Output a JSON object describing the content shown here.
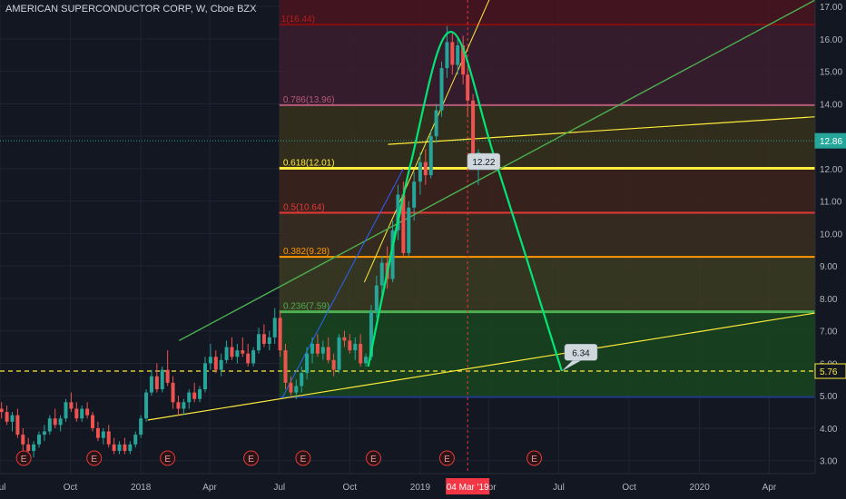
{
  "header": {
    "title": "AMERICAN SUPERCONDUCTOR CORP, W, Cboe BZX"
  },
  "colors": {
    "background": "#131722",
    "grid": "#1f2433",
    "axis_text": "#b2b5be",
    "up": "#26a69a",
    "down": "#ef5350",
    "current_price": "#26a69a",
    "dashed_level": "#ffeb3b",
    "date_flag": "#f23645"
  },
  "chart_data": {
    "type": "candlestick",
    "y_axis": {
      "range": [
        2.6,
        17.2
      ],
      "ticks": [
        "3.00",
        "4.00",
        "5.00",
        "6.00",
        "7.00",
        "8.00",
        "9.00",
        "10.00",
        "11.00",
        "12.00",
        "13.00",
        "14.00",
        "15.00",
        "16.00",
        "17.00"
      ]
    },
    "x_axis": {
      "range": [
        "2017-07-01",
        "2020-05-31"
      ],
      "ticks": [
        {
          "date": "2017-07-01",
          "label": "Jul"
        },
        {
          "date": "2017-10-01",
          "label": "Oct"
        },
        {
          "date": "2018-01-01",
          "label": "2018"
        },
        {
          "date": "2018-04-01",
          "label": "Apr"
        },
        {
          "date": "2018-07-01",
          "label": "Jul"
        },
        {
          "date": "2018-10-01",
          "label": "Oct"
        },
        {
          "date": "2019-01-01",
          "label": "2019"
        },
        {
          "date": "2019-04-01",
          "label": "Apr"
        },
        {
          "date": "2019-07-01",
          "label": "Jul"
        },
        {
          "date": "2019-10-01",
          "label": "Oct"
        },
        {
          "date": "2020-01-01",
          "label": "2020"
        },
        {
          "date": "2020-04-01",
          "label": "Apr"
        }
      ]
    },
    "date_flag": {
      "date": "2019-03-04",
      "label": "04 Mar '19"
    },
    "price_labels": [
      {
        "value": 12.86,
        "label": "12.86",
        "color": "#26a69a"
      },
      {
        "value": 5.76,
        "label": "5.76",
        "color": "#ffeb3b"
      }
    ],
    "fib": {
      "start": "2018-07-01",
      "end": "2020-05-31",
      "levels": [
        {
          "value": 16.44,
          "label": "1(16.44)",
          "color": "#880e0e",
          "band": "#5a1018"
        },
        {
          "value": 13.96,
          "label": "0.786(13.96)",
          "color": "#b45a78",
          "band": "#3a1d2e"
        },
        {
          "value": 12.01,
          "label": "0.618(12.01)",
          "color": "#ffeb3b",
          "band": "#35301c"
        },
        {
          "value": 10.64,
          "label": "0.5(10.64)",
          "color": "#e53935",
          "band": "#3b221d"
        },
        {
          "value": 9.28,
          "label": "0.382(9.28)",
          "color": "#ff9800",
          "band": "#3a2c1f"
        },
        {
          "value": 7.59,
          "label": "0.236(7.59)",
          "color": "#4caf50",
          "band": "#3a3a22"
        },
        {
          "value": 4.96,
          "label": "",
          "color": "#1e3a8a",
          "band": "#18441f"
        }
      ]
    },
    "earnings_markers": {
      "label": "E",
      "dates": [
        "2017-08-01",
        "2017-11-01",
        "2018-02-05",
        "2018-05-25",
        "2018-08-01",
        "2018-11-01",
        "2019-02-05",
        "2019-05-30"
      ]
    },
    "callouts": [
      {
        "text": "12.22",
        "date": "2019-03-25",
        "value": 12.22,
        "tip_date": "2019-03-10",
        "tip_value": 12.01
      },
      {
        "text": "6.34",
        "date": "2019-07-30",
        "value": 6.34,
        "tip_date": "2019-07-05",
        "tip_value": 5.76
      }
    ],
    "lines": [
      {
        "name": "lower-trend",
        "color": "#ffeb3b",
        "width": 1.2,
        "points": [
          [
            "2018-01-10",
            4.25
          ],
          [
            "2020-05-31",
            7.55
          ]
        ]
      },
      {
        "name": "upper-channel",
        "color": "#ffeb3b",
        "width": 1.2,
        "points": [
          [
            "2018-11-20",
            12.75
          ],
          [
            "2020-05-31",
            13.6
          ]
        ]
      },
      {
        "name": "steep-yellow",
        "color": "#ffeb3b",
        "width": 1,
        "points": [
          [
            "2018-10-20",
            8.5
          ],
          [
            "2019-04-01",
            17.2
          ]
        ]
      },
      {
        "name": "green-trend",
        "color": "#4caf50",
        "width": 1.4,
        "points": [
          [
            "2018-02-20",
            6.7
          ],
          [
            "2020-05-31",
            17.2
          ]
        ]
      },
      {
        "name": "blue-trend",
        "color": "#2962ff",
        "width": 1,
        "points": [
          [
            "2018-07-05",
            4.95
          ],
          [
            "2018-12-10",
            12.0
          ]
        ]
      },
      {
        "name": "green-rise",
        "color": "#00e676",
        "width": 1.2,
        "points": [
          [
            "2018-10-25",
            5.9
          ],
          [
            "2018-12-20",
            12.2
          ]
        ]
      }
    ],
    "arc": {
      "color": "#00e676",
      "points": [
        [
          "2018-10-25",
          5.9
        ],
        [
          "2018-12-20",
          12.2
        ],
        [
          "2019-02-10",
          16.22
        ],
        [
          "2019-04-10",
          12.2
        ],
        [
          "2019-07-05",
          5.76
        ]
      ]
    },
    "dashed_line": {
      "value": 5.76,
      "color": "#ffeb3b"
    },
    "dotted_line": {
      "value": 12.86,
      "color": "#26a69a"
    },
    "vertical_marker": {
      "date": "2019-03-04",
      "color": "#e53935"
    },
    "candles": [
      [
        "2017-07-03",
        4.6,
        4.8,
        4.3,
        4.5
      ],
      [
        "2017-07-10",
        4.5,
        4.7,
        4.1,
        4.2
      ],
      [
        "2017-07-17",
        4.2,
        4.5,
        3.9,
        4.4
      ],
      [
        "2017-07-24",
        4.4,
        4.6,
        3.7,
        3.8
      ],
      [
        "2017-07-31",
        3.8,
        4.0,
        3.3,
        3.5
      ],
      [
        "2017-08-07",
        3.5,
        3.7,
        3.1,
        3.3
      ],
      [
        "2017-08-14",
        3.3,
        3.6,
        3.1,
        3.5
      ],
      [
        "2017-08-21",
        3.5,
        3.9,
        3.4,
        3.8
      ],
      [
        "2017-08-28",
        3.8,
        4.1,
        3.6,
        3.9
      ],
      [
        "2017-09-04",
        3.9,
        4.4,
        3.8,
        4.3
      ],
      [
        "2017-09-11",
        4.3,
        4.6,
        4.0,
        4.1
      ],
      [
        "2017-09-18",
        4.1,
        4.4,
        3.9,
        4.3
      ],
      [
        "2017-09-25",
        4.3,
        4.9,
        4.2,
        4.8
      ],
      [
        "2017-10-02",
        4.8,
        5.1,
        4.5,
        4.6
      ],
      [
        "2017-10-09",
        4.6,
        4.8,
        4.2,
        4.3
      ],
      [
        "2017-10-16",
        4.3,
        4.7,
        4.2,
        4.6
      ],
      [
        "2017-10-23",
        4.6,
        4.8,
        4.3,
        4.4
      ],
      [
        "2017-10-30",
        4.4,
        4.5,
        3.9,
        4.0
      ],
      [
        "2017-11-06",
        4.0,
        4.2,
        3.6,
        3.7
      ],
      [
        "2017-11-13",
        3.7,
        4.0,
        3.5,
        3.9
      ],
      [
        "2017-11-20",
        3.9,
        4.1,
        3.4,
        3.5
      ],
      [
        "2017-11-27",
        3.5,
        3.7,
        3.2,
        3.3
      ],
      [
        "2017-12-04",
        3.3,
        3.6,
        3.2,
        3.5
      ],
      [
        "2017-12-11",
        3.5,
        3.7,
        3.2,
        3.3
      ],
      [
        "2017-12-18",
        3.3,
        3.6,
        3.2,
        3.5
      ],
      [
        "2017-12-25",
        3.5,
        3.9,
        3.4,
        3.8
      ],
      [
        "2018-01-01",
        3.8,
        4.4,
        3.7,
        4.3
      ],
      [
        "2018-01-08",
        4.3,
        5.2,
        4.2,
        5.1
      ],
      [
        "2018-01-15",
        5.1,
        5.8,
        5.0,
        5.6
      ],
      [
        "2018-01-22",
        5.6,
        6.0,
        5.1,
        5.2
      ],
      [
        "2018-01-29",
        5.2,
        5.9,
        5.1,
        5.8
      ],
      [
        "2018-02-05",
        5.8,
        6.4,
        5.3,
        5.4
      ],
      [
        "2018-02-12",
        5.4,
        5.6,
        4.6,
        4.8
      ],
      [
        "2018-02-19",
        4.8,
        5.0,
        4.4,
        4.6
      ],
      [
        "2018-02-26",
        4.6,
        4.9,
        4.4,
        4.8
      ],
      [
        "2018-03-05",
        4.8,
        5.2,
        4.6,
        5.1
      ],
      [
        "2018-03-12",
        5.1,
        5.4,
        4.8,
        4.9
      ],
      [
        "2018-03-19",
        4.9,
        5.3,
        4.8,
        5.2
      ],
      [
        "2018-03-26",
        5.2,
        6.2,
        5.1,
        6.0
      ],
      [
        "2018-04-02",
        6.0,
        6.6,
        5.8,
        6.2
      ],
      [
        "2018-04-09",
        6.2,
        6.4,
        5.7,
        5.8
      ],
      [
        "2018-04-16",
        5.8,
        6.3,
        5.6,
        6.1
      ],
      [
        "2018-04-23",
        6.1,
        6.7,
        6.0,
        6.5
      ],
      [
        "2018-04-30",
        6.5,
        6.8,
        6.1,
        6.2
      ],
      [
        "2018-05-07",
        6.2,
        6.6,
        6.0,
        6.4
      ],
      [
        "2018-05-14",
        6.4,
        6.8,
        6.2,
        6.3
      ],
      [
        "2018-05-21",
        6.3,
        6.6,
        5.9,
        6.0
      ],
      [
        "2018-05-28",
        6.0,
        6.5,
        5.9,
        6.4
      ],
      [
        "2018-06-04",
        6.4,
        7.1,
        6.3,
        6.9
      ],
      [
        "2018-06-11",
        6.9,
        7.2,
        6.5,
        6.6
      ],
      [
        "2018-06-18",
        6.6,
        7.0,
        6.4,
        6.8
      ],
      [
        "2018-06-25",
        6.8,
        7.7,
        6.6,
        7.4
      ],
      [
        "2018-07-02",
        7.4,
        7.6,
        6.2,
        6.4
      ],
      [
        "2018-07-09",
        6.4,
        6.6,
        5.2,
        5.4
      ],
      [
        "2018-07-16",
        5.4,
        5.6,
        5.0,
        5.1
      ],
      [
        "2018-07-23",
        5.1,
        5.5,
        4.9,
        5.3
      ],
      [
        "2018-07-30",
        5.3,
        5.9,
        5.1,
        5.7
      ],
      [
        "2018-08-06",
        5.7,
        6.5,
        5.5,
        6.3
      ],
      [
        "2018-08-13",
        6.3,
        6.8,
        6.0,
        6.6
      ],
      [
        "2018-08-20",
        6.6,
        6.9,
        6.2,
        6.3
      ],
      [
        "2018-08-27",
        6.3,
        6.7,
        6.1,
        6.5
      ],
      [
        "2018-09-03",
        6.5,
        6.8,
        6.0,
        6.1
      ],
      [
        "2018-09-10",
        6.1,
        6.3,
        5.6,
        5.8
      ],
      [
        "2018-09-17",
        5.8,
        6.9,
        5.7,
        6.8
      ],
      [
        "2018-09-24",
        6.8,
        7.0,
        6.5,
        6.7
      ],
      [
        "2018-10-01",
        6.7,
        6.9,
        6.3,
        6.4
      ],
      [
        "2018-10-08",
        6.4,
        6.8,
        6.1,
        6.6
      ],
      [
        "2018-10-15",
        6.6,
        6.9,
        5.9,
        6.0
      ],
      [
        "2018-10-22",
        6.0,
        6.3,
        5.9,
        6.2
      ],
      [
        "2018-10-29",
        6.2,
        7.8,
        6.1,
        7.6
      ],
      [
        "2018-11-05",
        7.6,
        8.7,
        7.4,
        8.4
      ],
      [
        "2018-11-12",
        8.4,
        9.3,
        8.1,
        9.1
      ],
      [
        "2018-11-19",
        9.1,
        9.6,
        8.3,
        8.6
      ],
      [
        "2018-11-26",
        8.6,
        10.4,
        8.5,
        10.1
      ],
      [
        "2018-12-03",
        10.1,
        11.5,
        9.8,
        11.2
      ],
      [
        "2018-12-10",
        11.2,
        11.6,
        9.3,
        9.4
      ],
      [
        "2018-12-17",
        9.4,
        11.0,
        9.3,
        10.8
      ],
      [
        "2018-12-24",
        10.8,
        11.9,
        10.4,
        11.6
      ],
      [
        "2019-01-01",
        11.6,
        12.5,
        11.2,
        12.2
      ],
      [
        "2019-01-08",
        12.2,
        12.6,
        11.5,
        11.8
      ],
      [
        "2019-01-15",
        11.8,
        13.2,
        11.7,
        13.0
      ],
      [
        "2019-01-22",
        13.0,
        14.0,
        12.8,
        13.8
      ],
      [
        "2019-01-29",
        13.8,
        15.3,
        13.6,
        15.1
      ],
      [
        "2019-02-05",
        15.1,
        16.4,
        14.8,
        15.9
      ],
      [
        "2019-02-12",
        15.9,
        16.2,
        14.9,
        15.2
      ],
      [
        "2019-02-19",
        15.2,
        16.0,
        14.9,
        15.8
      ],
      [
        "2019-02-26",
        15.8,
        16.1,
        14.6,
        14.9
      ],
      [
        "2019-03-04",
        14.9,
        15.1,
        13.6,
        14.1
      ],
      [
        "2019-03-11",
        14.1,
        14.3,
        12.1,
        12.3
      ],
      [
        "2019-03-18",
        12.3,
        12.6,
        11.5,
        12.5
      ]
    ]
  }
}
